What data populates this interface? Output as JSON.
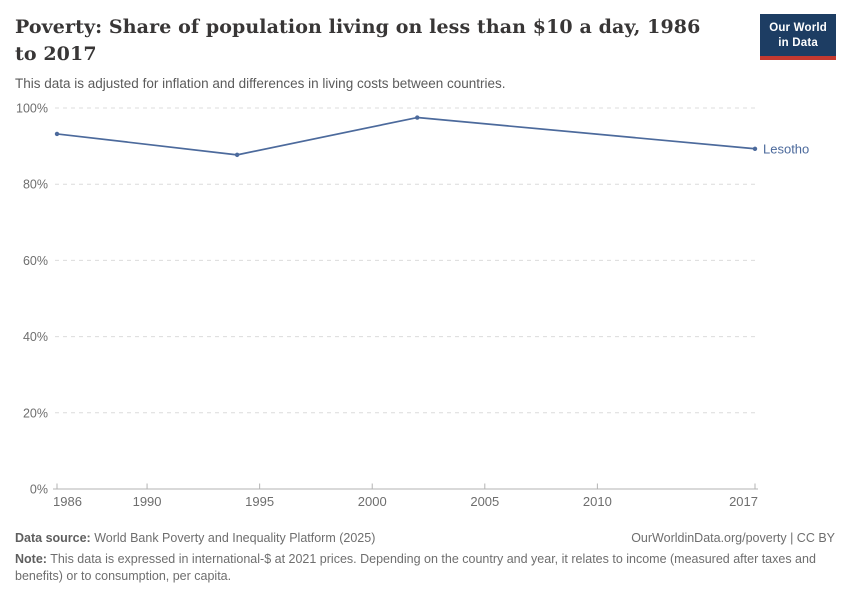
{
  "header": {
    "title": "Poverty: Share of population living on less than $10 a day, 1986 to 2017",
    "subtitle": "This data is adjusted for inflation and differences in living costs between countries.",
    "logo": {
      "line1": "Our World",
      "line2": "in Data"
    }
  },
  "chart_data": {
    "type": "line",
    "title": "Poverty: Share of population living on less than $10 a day, 1986 to 2017",
    "xlabel": "",
    "ylabel": "",
    "series": [
      {
        "name": "Lesotho",
        "x": [
          1986,
          1994,
          2002,
          2017
        ],
        "values": [
          93.2,
          87.7,
          97.5,
          89.3
        ],
        "color": "#4c6a9c"
      }
    ],
    "xlim": [
      1986,
      2017
    ],
    "ylim": [
      0,
      100
    ],
    "xticks": [
      1986,
      1990,
      1995,
      2000,
      2005,
      2010,
      2017
    ],
    "yticks": [
      0,
      20,
      40,
      60,
      80,
      100
    ],
    "ytick_suffix": "%",
    "grid": "horizontal-dashed",
    "legend_position": "end-of-line-label",
    "entity_label": "Lesotho"
  },
  "colors": {
    "line": "#4c6a9c",
    "grid": "#dcdcdc",
    "axis": "#b3b3b3",
    "tick_label": "#6e6e6e",
    "logo_bg": "#1d3d63",
    "logo_bar": "#c4392f"
  },
  "footer": {
    "datasource_label": "Data source:",
    "datasource_text": " World Bank Poverty and Inequality Platform (2025)",
    "rights_text": "OurWorldinData.org/poverty | CC BY",
    "note_label": "Note:",
    "note_text": " This data is expressed in international-$ at 2021 prices. Depending on the country and year, it relates to income (measured after taxes and benefits) or to consumption, per capita."
  }
}
